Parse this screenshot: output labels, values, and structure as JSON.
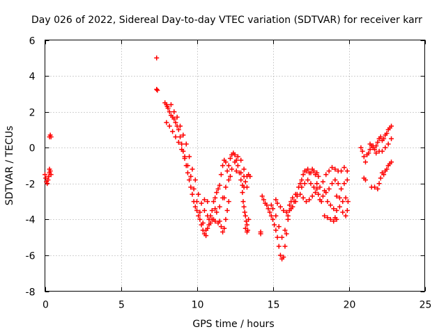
{
  "chart_data": {
    "type": "scatter",
    "title": "Day 026 of 2022, Sidereal Day-to-day VTEC variation (SDTVAR) for receiver karr",
    "xlabel": "GPS time / hours",
    "ylabel": "SDTVAR / TECUs",
    "xlim": [
      0,
      25
    ],
    "ylim": [
      -8,
      6
    ],
    "x_ticks": [
      0,
      5,
      10,
      15,
      20,
      25
    ],
    "y_ticks": [
      -8,
      -6,
      -4,
      -2,
      0,
      2,
      4,
      6
    ],
    "grid": true,
    "marker": "+",
    "color": "#ff0000",
    "series": [
      {
        "name": "SDTVAR",
        "points": [
          [
            0.0,
            -1.5
          ],
          [
            0.05,
            -1.7
          ],
          [
            0.1,
            -1.9
          ],
          [
            0.15,
            -2.0
          ],
          [
            0.2,
            -1.8
          ],
          [
            0.25,
            -1.6
          ],
          [
            0.3,
            -1.4
          ],
          [
            0.35,
            -1.3
          ],
          [
            0.4,
            -1.5
          ],
          [
            0.3,
            -1.2
          ],
          [
            0.3,
            0.6
          ],
          [
            0.35,
            0.7
          ],
          [
            0.4,
            0.6
          ],
          [
            7.35,
            5.0
          ],
          [
            7.35,
            3.25
          ],
          [
            7.4,
            3.2
          ],
          [
            7.9,
            2.5
          ],
          [
            8.0,
            2.4
          ],
          [
            8.05,
            2.3
          ],
          [
            8.1,
            2.2
          ],
          [
            8.2,
            2.0
          ],
          [
            8.3,
            1.8
          ],
          [
            8.4,
            1.7
          ],
          [
            8.5,
            1.6
          ],
          [
            8.6,
            1.4
          ],
          [
            8.7,
            1.2
          ],
          [
            8.8,
            1.0
          ],
          [
            8.9,
            0.6
          ],
          [
            9.0,
            0.2
          ],
          [
            9.1,
            -0.2
          ],
          [
            9.2,
            -0.6
          ],
          [
            9.3,
            -1.0
          ],
          [
            9.4,
            -1.4
          ],
          [
            9.5,
            -1.8
          ],
          [
            9.6,
            -2.2
          ],
          [
            9.7,
            -2.6
          ],
          [
            9.8,
            -3.0
          ],
          [
            9.9,
            -3.3
          ],
          [
            10.0,
            -3.5
          ],
          [
            10.1,
            -3.8
          ],
          [
            10.2,
            -4.0
          ],
          [
            10.3,
            -4.3
          ],
          [
            10.4,
            -4.6
          ],
          [
            10.5,
            -4.8
          ],
          [
            10.6,
            -4.9
          ],
          [
            10.7,
            -4.5
          ],
          [
            10.8,
            -4.0
          ],
          [
            10.9,
            -3.8
          ],
          [
            11.0,
            -3.5
          ],
          [
            11.1,
            -3.0
          ],
          [
            11.2,
            -2.8
          ],
          [
            11.3,
            -2.5
          ],
          [
            11.4,
            -2.3
          ],
          [
            11.5,
            -2.1
          ],
          [
            11.6,
            -1.5
          ],
          [
            11.7,
            -1.0
          ],
          [
            11.8,
            -0.7
          ],
          [
            11.9,
            -0.8
          ],
          [
            12.0,
            -1.3
          ],
          [
            12.1,
            -1.0
          ],
          [
            12.2,
            -0.6
          ],
          [
            12.3,
            -0.4
          ],
          [
            12.4,
            -0.3
          ],
          [
            12.5,
            -0.4
          ],
          [
            12.6,
            -0.7
          ],
          [
            12.7,
            -1.0
          ],
          [
            12.8,
            -1.4
          ],
          [
            12.9,
            -1.8
          ],
          [
            13.0,
            -2.1
          ],
          [
            13.1,
            -2.2
          ],
          [
            13.2,
            -1.9
          ],
          [
            13.3,
            -1.6
          ],
          [
            13.4,
            -1.5
          ],
          [
            13.5,
            -1.6
          ],
          [
            8.0,
            1.4
          ],
          [
            8.2,
            1.2
          ],
          [
            8.4,
            0.9
          ],
          [
            8.6,
            0.6
          ],
          [
            8.8,
            0.3
          ],
          [
            9.0,
            -0.1
          ],
          [
            9.2,
            -0.5
          ],
          [
            9.4,
            -1.0
          ],
          [
            9.6,
            -1.6
          ],
          [
            9.8,
            -2.3
          ],
          [
            10.0,
            -3.0
          ],
          [
            10.2,
            -3.6
          ],
          [
            10.4,
            -4.2
          ],
          [
            10.6,
            -4.6
          ],
          [
            10.8,
            -4.3
          ],
          [
            11.0,
            -4.0
          ],
          [
            11.2,
            -4.1
          ],
          [
            11.4,
            -4.2
          ],
          [
            11.5,
            -4.1
          ],
          [
            11.6,
            -4.4
          ],
          [
            11.7,
            -4.7
          ],
          [
            11.8,
            -4.5
          ],
          [
            11.9,
            -4.0
          ],
          [
            12.0,
            -3.5
          ],
          [
            12.1,
            -3.0
          ],
          [
            8.3,
            2.4
          ],
          [
            8.5,
            2.0
          ],
          [
            8.7,
            1.7
          ],
          [
            8.9,
            1.2
          ],
          [
            9.1,
            0.7
          ],
          [
            9.3,
            0.2
          ],
          [
            9.5,
            -0.5
          ],
          [
            9.7,
            -1.2
          ],
          [
            9.9,
            -1.8
          ],
          [
            10.1,
            -2.6
          ],
          [
            10.3,
            -3.1
          ],
          [
            10.5,
            -3.5
          ],
          [
            10.7,
            -3.8
          ],
          [
            10.9,
            -4.2
          ],
          [
            11.1,
            -4.0
          ],
          [
            11.3,
            -3.6
          ],
          [
            11.5,
            -3.3
          ],
          [
            11.7,
            -2.8
          ],
          [
            11.9,
            -2.2
          ],
          [
            12.1,
            -1.8
          ],
          [
            12.3,
            -1.2
          ],
          [
            12.5,
            -0.8
          ],
          [
            12.7,
            -0.5
          ],
          [
            12.9,
            -0.7
          ],
          [
            13.1,
            -1.2
          ],
          [
            13.3,
            -2.2
          ],
          [
            10.5,
            -2.9
          ],
          [
            10.7,
            -3.0
          ],
          [
            11.2,
            -3.4
          ],
          [
            11.8,
            -2.8
          ],
          [
            12.2,
            -1.6
          ],
          [
            12.6,
            -1.3
          ],
          [
            12.9,
            -1.4
          ],
          [
            13.1,
            -1.6
          ],
          [
            13.0,
            -2.5
          ],
          [
            13.05,
            -3.0
          ],
          [
            13.1,
            -3.3
          ],
          [
            13.15,
            -3.6
          ],
          [
            13.2,
            -3.8
          ],
          [
            13.25,
            -4.1
          ],
          [
            13.3,
            -4.3
          ],
          [
            13.35,
            -4.6
          ],
          [
            13.4,
            -4.0
          ],
          [
            13.3,
            -4.7
          ],
          [
            13.2,
            -4.5
          ],
          [
            14.2,
            -4.7
          ],
          [
            14.2,
            -4.8
          ],
          [
            14.3,
            -2.7
          ],
          [
            14.4,
            -2.9
          ],
          [
            14.5,
            -3.1
          ],
          [
            14.6,
            -3.2
          ],
          [
            14.7,
            -3.4
          ],
          [
            14.8,
            -3.6
          ],
          [
            14.9,
            -3.8
          ],
          [
            15.0,
            -4.0
          ],
          [
            15.1,
            -4.3
          ],
          [
            15.2,
            -4.6
          ],
          [
            15.3,
            -5.0
          ],
          [
            15.4,
            -5.5
          ],
          [
            15.5,
            -6.0
          ],
          [
            15.6,
            -6.2
          ],
          [
            15.7,
            -6.1
          ],
          [
            15.8,
            -5.5
          ],
          [
            15.9,
            -4.8
          ],
          [
            16.0,
            -4.0
          ],
          [
            16.1,
            -3.5
          ],
          [
            16.2,
            -3.0
          ],
          [
            16.3,
            -3.3
          ],
          [
            14.9,
            -3.2
          ],
          [
            15.0,
            -3.4
          ],
          [
            15.2,
            -3.8
          ],
          [
            15.4,
            -4.4
          ],
          [
            15.6,
            -5.0
          ],
          [
            15.8,
            -4.6
          ],
          [
            16.0,
            -3.8
          ],
          [
            16.2,
            -3.4
          ],
          [
            16.4,
            -3.0
          ],
          [
            16.5,
            -2.6
          ],
          [
            15.2,
            -2.9
          ],
          [
            15.3,
            -3.1
          ],
          [
            15.5,
            -3.3
          ],
          [
            15.7,
            -3.5
          ],
          [
            15.9,
            -3.6
          ],
          [
            16.1,
            -3.2
          ],
          [
            16.3,
            -2.8
          ],
          [
            16.5,
            -3.0
          ],
          [
            16.6,
            -2.6
          ],
          [
            16.7,
            -2.2
          ],
          [
            16.8,
            -2.0
          ],
          [
            16.9,
            -1.8
          ],
          [
            17.0,
            -1.5
          ],
          [
            17.1,
            -1.3
          ],
          [
            17.2,
            -1.3
          ],
          [
            17.3,
            -1.2
          ],
          [
            17.4,
            -1.4
          ],
          [
            17.5,
            -1.4
          ],
          [
            17.6,
            -1.2
          ],
          [
            17.7,
            -1.3
          ],
          [
            17.8,
            -1.5
          ],
          [
            17.9,
            -1.4
          ],
          [
            18.0,
            -1.6
          ],
          [
            16.6,
            -2.7
          ],
          [
            16.8,
            -2.6
          ],
          [
            17.0,
            -2.8
          ],
          [
            17.2,
            -3.0
          ],
          [
            17.4,
            -2.9
          ],
          [
            17.6,
            -2.7
          ],
          [
            17.8,
            -2.5
          ],
          [
            17.9,
            -2.3
          ],
          [
            18.0,
            -2.6
          ],
          [
            18.1,
            -2.9
          ],
          [
            18.2,
            -3.0
          ],
          [
            18.3,
            -2.7
          ],
          [
            18.4,
            -2.4
          ],
          [
            16.9,
            -2.2
          ],
          [
            17.1,
            -2.0
          ],
          [
            17.3,
            -1.8
          ],
          [
            17.5,
            -2.0
          ],
          [
            17.7,
            -2.2
          ],
          [
            17.9,
            -2.0
          ],
          [
            18.1,
            -2.2
          ],
          [
            18.3,
            -1.9
          ],
          [
            18.5,
            -1.5
          ],
          [
            18.7,
            -1.3
          ],
          [
            18.9,
            -1.1
          ],
          [
            19.1,
            -1.2
          ],
          [
            19.3,
            -1.3
          ],
          [
            19.5,
            -1.3
          ],
          [
            19.7,
            -1.1
          ],
          [
            19.9,
            -1.3
          ],
          [
            18.4,
            -3.8
          ],
          [
            18.6,
            -3.9
          ],
          [
            18.8,
            -4.0
          ],
          [
            19.0,
            -4.1
          ],
          [
            19.1,
            -3.9
          ],
          [
            19.2,
            -4.0
          ],
          [
            18.5,
            -2.5
          ],
          [
            18.7,
            -2.3
          ],
          [
            18.9,
            -2.0
          ],
          [
            19.1,
            -1.8
          ],
          [
            19.3,
            -2.0
          ],
          [
            19.5,
            -2.3
          ],
          [
            19.7,
            -2.0
          ],
          [
            19.9,
            -1.8
          ],
          [
            18.6,
            -3.0
          ],
          [
            18.8,
            -3.2
          ],
          [
            19.0,
            -3.4
          ],
          [
            19.2,
            -3.5
          ],
          [
            19.4,
            -3.3
          ],
          [
            19.6,
            -3.6
          ],
          [
            19.8,
            -3.8
          ],
          [
            19.9,
            -3.5
          ],
          [
            19.2,
            -2.7
          ],
          [
            19.4,
            -2.8
          ],
          [
            19.6,
            -3.0
          ],
          [
            19.8,
            -2.8
          ],
          [
            19.95,
            -3.0
          ],
          [
            20.8,
            0.0
          ],
          [
            20.9,
            -0.2
          ],
          [
            21.0,
            -0.5
          ],
          [
            21.1,
            -0.8
          ],
          [
            21.0,
            -1.7
          ],
          [
            21.1,
            -1.8
          ],
          [
            21.2,
            -0.4
          ],
          [
            21.3,
            -0.3
          ],
          [
            21.4,
            -0.1
          ],
          [
            21.5,
            0.1
          ],
          [
            21.6,
            0.0
          ],
          [
            21.7,
            -0.1
          ],
          [
            21.8,
            0.1
          ],
          [
            21.9,
            0.3
          ],
          [
            22.0,
            0.5
          ],
          [
            22.1,
            0.6
          ],
          [
            22.2,
            0.4
          ],
          [
            22.3,
            0.5
          ],
          [
            22.4,
            0.7
          ],
          [
            22.5,
            0.8
          ],
          [
            22.6,
            1.0
          ],
          [
            22.7,
            1.1
          ],
          [
            22.8,
            1.2
          ],
          [
            21.5,
            -2.2
          ],
          [
            21.7,
            -2.2
          ],
          [
            21.9,
            -2.3
          ],
          [
            22.0,
            -2.0
          ],
          [
            22.1,
            -1.7
          ],
          [
            22.2,
            -1.4
          ],
          [
            22.3,
            -1.5
          ],
          [
            22.4,
            -1.3
          ],
          [
            22.5,
            -1.2
          ],
          [
            22.6,
            -1.0
          ],
          [
            22.7,
            -0.9
          ],
          [
            22.8,
            -0.8
          ],
          [
            21.4,
            0.2
          ],
          [
            21.6,
            0.1
          ],
          [
            21.8,
            -0.3
          ],
          [
            22.0,
            -0.2
          ],
          [
            22.2,
            -0.2
          ],
          [
            22.4,
            0.0
          ],
          [
            22.6,
            0.2
          ],
          [
            22.8,
            0.5
          ]
        ]
      }
    ]
  }
}
